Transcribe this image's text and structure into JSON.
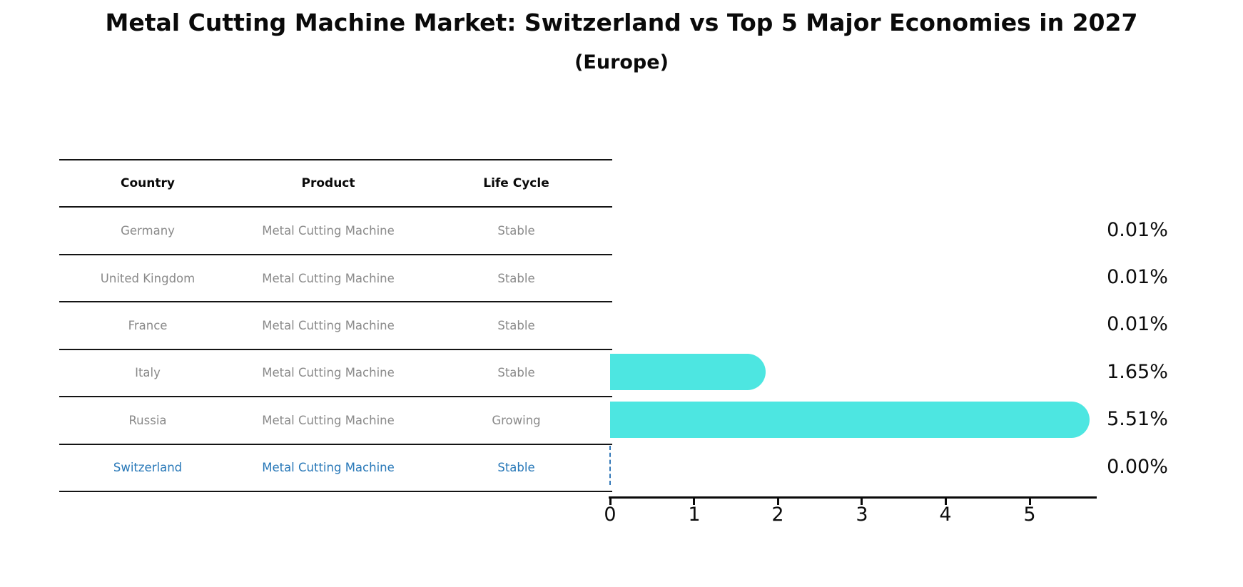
{
  "title": "Metal Cutting Machine Market: Switzerland vs Top 5 Major Economies in 2027",
  "subtitle": "(Europe)",
  "table": {
    "headers": [
      "Country",
      "Product",
      "Life Cycle"
    ],
    "rows": [
      {
        "country": "Germany",
        "product": "Metal Cutting Machine",
        "life_cycle": "Stable",
        "highlight": false
      },
      {
        "country": "United Kingdom",
        "product": "Metal Cutting Machine",
        "life_cycle": "Stable",
        "highlight": false
      },
      {
        "country": "France",
        "product": "Metal Cutting Machine",
        "life_cycle": "Stable",
        "highlight": false
      },
      {
        "country": "Italy",
        "product": "Metal Cutting Machine",
        "life_cycle": "Stable",
        "highlight": false
      },
      {
        "country": "Russia",
        "product": "Metal Cutting Machine",
        "life_cycle": "Growing",
        "highlight": false
      },
      {
        "country": "Switzerland",
        "product": "Metal Cutting Machine",
        "life_cycle": "Stable",
        "highlight": true
      }
    ]
  },
  "chart_data": {
    "type": "bar",
    "orientation": "horizontal",
    "title": "Metal Cutting Machine Market: Switzerland vs Top 5 Major Economies in 2027",
    "subtitle": "(Europe)",
    "categories": [
      "Germany",
      "United Kingdom",
      "France",
      "Italy",
      "Russia",
      "Switzerland"
    ],
    "values": [
      0.01,
      0.01,
      0.01,
      1.65,
      5.51,
      0.0
    ],
    "value_labels": [
      "0.01%",
      "0.01%",
      "0.01%",
      "1.65%",
      "5.51%",
      "0.00%"
    ],
    "x_ticks": [
      "0",
      "1",
      "2",
      "3",
      "4",
      "5"
    ],
    "xlim": [
      0,
      5.8
    ],
    "xlabel": "",
    "ylabel": "",
    "grid": false,
    "legend": "none",
    "bar_color": "#4DE6E1",
    "highlight_color": "#2878b8",
    "switzerland_marker": "dashed-line-at-zero"
  }
}
